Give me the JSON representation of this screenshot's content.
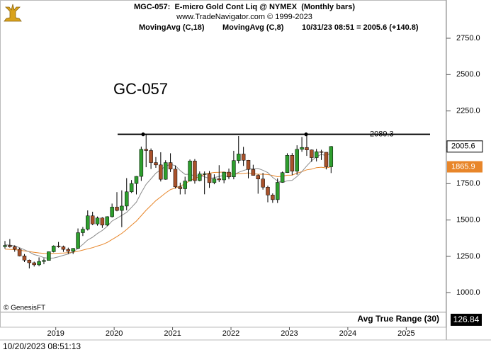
{
  "chart_data": {
    "type": "candlestick",
    "title": "MGC-057:  E-micro Gold Cont Liq @ NYMEX  (Monthly bars)",
    "subtitle": "www.TradeNavigator.com © 1999-2023",
    "quote": "10/31/23 08:51 = 2005.6 (+140.8)",
    "symbol_label": "GC-057",
    "copyright": "© GenesisFT",
    "timestamp": "10/20/2023 08:51:13",
    "xticks": [
      "2019",
      "2020",
      "2021",
      "2022",
      "2023",
      "2024",
      "2025"
    ],
    "ylim": [
      870,
      3013
    ],
    "yticks": [
      {
        "value": 1000,
        "label": "1000.0"
      },
      {
        "value": 1250,
        "label": "1250.0"
      },
      {
        "value": 1500,
        "label": "1500.0"
      },
      {
        "value": 1750,
        "label": "1750.0"
      },
      {
        "value": 2000,
        "label": "2000.0"
      },
      {
        "value": 2250,
        "label": "2250.0"
      },
      {
        "value": 2500,
        "label": "2500.0"
      },
      {
        "value": 2750,
        "label": "2750.0"
      }
    ],
    "ohlc": {
      "up_color": "#2e9e2e",
      "down_color": "#a9522b",
      "open": [
        1317,
        1325,
        1316,
        1299,
        1253,
        1224,
        1206,
        1192,
        1215,
        1222,
        1282,
        1321,
        1316,
        1298,
        1285,
        1305,
        1413,
        1437,
        1529,
        1473,
        1514,
        1465,
        1523,
        1589,
        1566,
        1596,
        1694,
        1751,
        1800,
        1986,
        1978,
        1895,
        1879,
        1780,
        1895,
        1850,
        1728,
        1715,
        1768,
        1906,
        1771,
        1817,
        1818,
        1757,
        1784,
        1776,
        1829,
        1797,
        1909,
        1954,
        1911,
        1848,
        1807,
        1782,
        1726,
        1672,
        1640,
        1759,
        1826,
        1945,
        1836,
        1986,
        1999,
        1982,
        1929,
        1970,
        1966,
        1866
      ],
      "high": [
        1356,
        1369,
        1326,
        1309,
        1266,
        1228,
        1214,
        1243,
        1237,
        1284,
        1326,
        1349,
        1324,
        1310,
        1307,
        1442,
        1452,
        1566,
        1557,
        1524,
        1519,
        1526,
        1613,
        1692,
        1704,
        1788,
        1775,
        1802,
        2005,
        2089.2,
        1992,
        1933,
        1966,
        1911,
        1959,
        1875,
        1757,
        1798,
        1916,
        1919,
        1834,
        1834,
        1837,
        1814,
        1877,
        1831,
        1854,
        1976,
        2078,
        2003,
        1913,
        1880,
        1814,
        1824,
        1736,
        1683,
        1786,
        1833,
        1959,
        1960,
        2014,
        2071,
        2085,
        1985,
        1989,
        1983,
        1967,
        2009
      ],
      "low": [
        1303,
        1310,
        1282,
        1250,
        1211,
        1167,
        1180,
        1182,
        1196,
        1221,
        1277,
        1310,
        1281,
        1267,
        1266,
        1301,
        1390,
        1428,
        1465,
        1461,
        1446,
        1459,
        1517,
        1560,
        1451,
        1567,
        1686,
        1676,
        1769,
        1863,
        1851,
        1859,
        1765,
        1777,
        1830,
        1717,
        1676,
        1677,
        1765,
        1750,
        1766,
        1677,
        1721,
        1746,
        1761,
        1753,
        1780,
        1780,
        1890,
        1872,
        1787,
        1805,
        1681,
        1709,
        1622,
        1618,
        1617,
        1757,
        1824,
        1809,
        1811,
        1969,
        1941,
        1900,
        1903,
        1913,
        1848,
        1823
      ],
      "close": [
        1325,
        1316,
        1299,
        1253,
        1224,
        1206,
        1192,
        1215,
        1222,
        1282,
        1321,
        1316,
        1298,
        1285,
        1305,
        1413,
        1437,
        1529,
        1473,
        1514,
        1465,
        1523,
        1589,
        1566,
        1596,
        1694,
        1751,
        1800,
        1986,
        1978,
        1895,
        1879,
        1780,
        1895,
        1850,
        1728,
        1715,
        1768,
        1906,
        1771,
        1817,
        1818,
        1757,
        1784,
        1776,
        1829,
        1797,
        1909,
        1954,
        1911,
        1848,
        1807,
        1782,
        1726,
        1672,
        1640,
        1759,
        1826,
        1945,
        1836,
        1986,
        1999,
        1982,
        1929,
        1970,
        1966,
        1866,
        2005.6
      ]
    },
    "overlays": [
      {
        "name": "MovingAvg (C,18)",
        "color": "#e8862a",
        "values": [
          1300,
          1298,
          1296,
          1292,
          1288,
          1283,
          1278,
          1274,
          1271,
          1270,
          1271,
          1272,
          1273,
          1275,
          1278,
          1285,
          1293,
          1302,
          1310,
          1321,
          1331,
          1346,
          1366,
          1386,
          1408,
          1435,
          1464,
          1493,
          1530,
          1567,
          1600,
          1633,
          1659,
          1686,
          1709,
          1720,
          1734,
          1748,
          1772,
          1786,
          1799,
          1813,
          1822,
          1827,
          1828,
          1830,
          1819,
          1815,
          1819,
          1820,
          1824,
          1819,
          1815,
          1815,
          1813,
          1806,
          1798,
          1801,
          1808,
          1809,
          1822,
          1833,
          1845,
          1850,
          1860,
          1863,
          1858,
          1865.9
        ]
      },
      {
        "name": "MovingAvg (C,8)",
        "color": "#8c8c8c",
        "values": [
          1330,
          1328,
          1322,
          1310,
          1295,
          1280,
          1262,
          1254,
          1241,
          1237,
          1239,
          1247,
          1257,
          1266,
          1281,
          1305,
          1332,
          1363,
          1382,
          1407,
          1428,
          1457,
          1493,
          1512,
          1532,
          1553,
          1587,
          1623,
          1688,
          1745,
          1783,
          1822,
          1845,
          1871,
          1883,
          1874,
          1840,
          1814,
          1815,
          1802,
          1806,
          1797,
          1785,
          1792,
          1800,
          1807,
          1794,
          1811,
          1828,
          1840,
          1851,
          1854,
          1855,
          1842,
          1826,
          1793,
          1768,
          1758,
          1770,
          1773,
          1799,
          1833,
          1872,
          1908,
          1934,
          1952,
          1942,
          1963
        ]
      }
    ],
    "resistance": 2089.3,
    "indicator": {
      "name": "Avg True Range (30)",
      "last": 126.84
    }
  }
}
